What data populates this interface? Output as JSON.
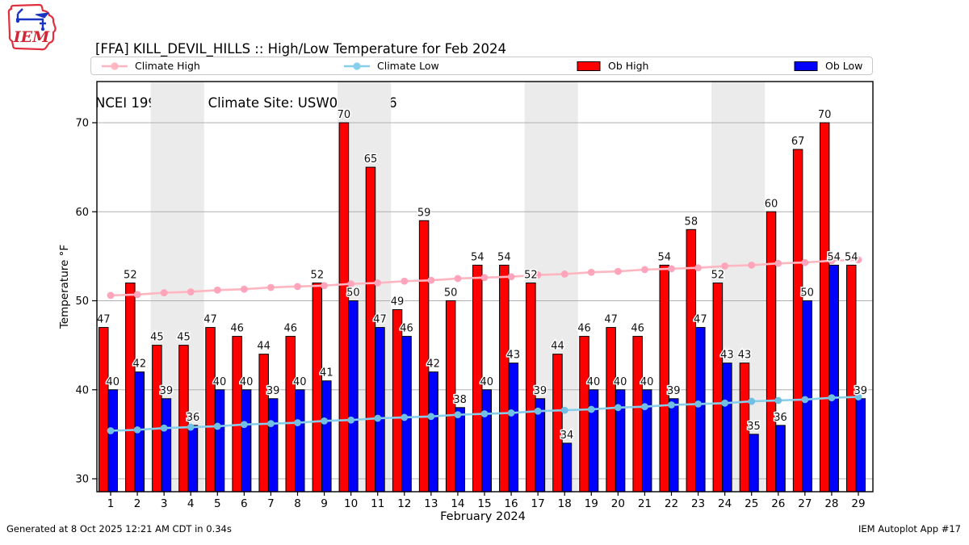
{
  "header": {
    "title_line1": "[FFA] KILL_DEVIL_HILLS :: High/Low Temperature for Feb 2024",
    "title_line2": "NCEI 1991-2020 Climate Site: USW00013766",
    "logo_text": "IEM"
  },
  "legend": {
    "items": [
      {
        "label": "Climate High",
        "type": "line",
        "color": "#ffb6c1"
      },
      {
        "label": "Climate Low",
        "type": "line",
        "color": "#87ceeb"
      },
      {
        "label": "Ob High",
        "type": "patch",
        "color": "#ff0000"
      },
      {
        "label": "Ob Low",
        "type": "patch",
        "color": "#0000ff"
      }
    ]
  },
  "chart_data": {
    "type": "bar",
    "xlabel": "February 2024",
    "ylabel": "Temperature °F",
    "ylim": [
      28.5,
      74.6
    ],
    "yticks": [
      30,
      40,
      50,
      60,
      70
    ],
    "grid": true,
    "legend_position": "top",
    "band_color": "#ebebeb",
    "grid_color": "#b0b0b0",
    "weekend_bands": [
      [
        2.5,
        4.5
      ],
      [
        9.5,
        11.5
      ],
      [
        16.5,
        18.5
      ],
      [
        23.5,
        25.5
      ]
    ],
    "days": [
      1,
      2,
      3,
      4,
      5,
      6,
      7,
      8,
      9,
      10,
      11,
      12,
      13,
      14,
      15,
      16,
      17,
      18,
      19,
      20,
      21,
      22,
      23,
      24,
      25,
      26,
      27,
      28,
      29
    ],
    "series": [
      {
        "name": "Ob High",
        "type": "bar",
        "color": "#ff0000",
        "values": [
          47,
          52,
          45,
          45,
          47,
          46,
          44,
          46,
          52,
          70,
          65,
          49,
          59,
          50,
          54,
          54,
          52,
          44,
          46,
          47,
          46,
          54,
          58,
          52,
          43,
          60,
          67,
          70,
          54
        ]
      },
      {
        "name": "Ob Low",
        "type": "bar",
        "color": "#0000ff",
        "values": [
          40,
          42,
          39,
          36,
          40,
          40,
          39,
          40,
          41,
          50,
          47,
          46,
          42,
          38,
          40,
          43,
          39,
          34,
          40,
          40,
          40,
          39,
          47,
          43,
          35,
          36,
          50,
          54,
          39
        ]
      },
      {
        "name": "Climate High",
        "type": "line",
        "color": "#ffb6c1",
        "marker_color": "#ffa4ba",
        "values": [
          50.6,
          50.7,
          50.9,
          51.0,
          51.2,
          51.3,
          51.5,
          51.6,
          51.7,
          51.9,
          52.0,
          52.2,
          52.3,
          52.5,
          52.6,
          52.7,
          52.9,
          53.0,
          53.2,
          53.3,
          53.5,
          53.6,
          53.7,
          53.9,
          54.0,
          54.2,
          54.3,
          54.5,
          54.6
        ]
      },
      {
        "name": "Climate Low",
        "type": "line",
        "color": "#87ceeb",
        "marker_color": "#6fc0e2",
        "values": [
          35.4,
          35.5,
          35.7,
          35.8,
          35.9,
          36.1,
          36.2,
          36.3,
          36.5,
          36.6,
          36.8,
          36.9,
          37.0,
          37.2,
          37.3,
          37.4,
          37.6,
          37.7,
          37.8,
          38.0,
          38.1,
          38.3,
          38.4,
          38.5,
          38.7,
          38.8,
          38.9,
          39.1,
          39.2
        ]
      }
    ]
  },
  "footer": {
    "left": "Generated at 8 Oct 2025 12:21 AM CDT in 0.34s",
    "right": "IEM Autoplot App #17"
  }
}
